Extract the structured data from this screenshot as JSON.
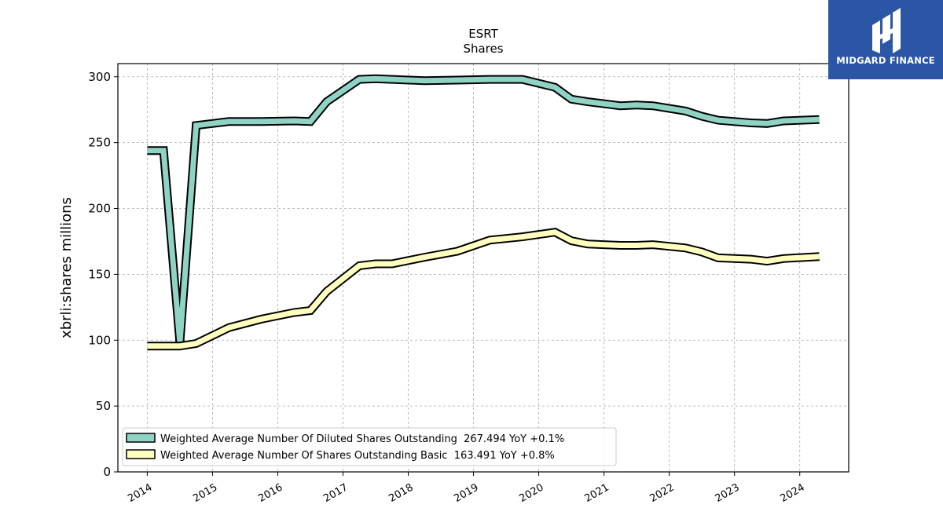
{
  "logo": {
    "text": "MIDGARD FINANCE",
    "icon": "midgard-logo-icon",
    "background": "#2b56a6"
  },
  "chart_data": {
    "type": "line",
    "title": "ESRT",
    "subtitle": "Shares",
    "xlabel": "",
    "ylabel": "xbrli:shares millions",
    "ylim": [
      0,
      310
    ],
    "xlim": [
      2013.55,
      2024.75
    ],
    "yticks": [
      0,
      50,
      100,
      150,
      200,
      250,
      300
    ],
    "xticks": [
      "2014",
      "2015",
      "2016",
      "2017",
      "2018",
      "2019",
      "2020",
      "2021",
      "2022",
      "2023",
      "2024"
    ],
    "grid": true,
    "legend_position": "lower-left",
    "series": [
      {
        "name": "Weighted Average Number Of Diluted Shares Outstanding",
        "legend_label": "Weighted Average Number Of Diluted Shares Outstanding  267.494 YoY +0.1%",
        "color": "#8fd3c4",
        "points": [
          [
            2014.0,
            244.0
          ],
          [
            2014.25,
            244.0
          ],
          [
            2014.5,
            98.0
          ],
          [
            2014.75,
            263.0
          ],
          [
            2015.25,
            266.0
          ],
          [
            2015.75,
            266.0
          ],
          [
            2016.25,
            266.5
          ],
          [
            2016.5,
            266.0
          ],
          [
            2016.75,
            281.0
          ],
          [
            2017.25,
            298.0
          ],
          [
            2017.5,
            298.5
          ],
          [
            2017.75,
            298.0
          ],
          [
            2018.25,
            297.0
          ],
          [
            2018.75,
            297.5
          ],
          [
            2019.25,
            298.0
          ],
          [
            2019.75,
            298.0
          ],
          [
            2020.25,
            292.0
          ],
          [
            2020.5,
            283.0
          ],
          [
            2020.75,
            281.0
          ],
          [
            2021.25,
            278.0
          ],
          [
            2021.5,
            278.5
          ],
          [
            2021.75,
            278.0
          ],
          [
            2022.25,
            274.0
          ],
          [
            2022.5,
            270.0
          ],
          [
            2022.75,
            267.0
          ],
          [
            2023.25,
            265.0
          ],
          [
            2023.5,
            264.5
          ],
          [
            2023.75,
            266.5
          ],
          [
            2024.3,
            267.5
          ]
        ]
      },
      {
        "name": "Weighted Average Number Of Shares Outstanding Basic",
        "legend_label": "Weighted Average Number Of Shares Outstanding Basic  163.491 YoY +0.8%",
        "color": "#ffffbf",
        "points": [
          [
            2014.0,
            95.5
          ],
          [
            2014.25,
            95.5
          ],
          [
            2014.5,
            95.5
          ],
          [
            2014.75,
            97.5
          ],
          [
            2015.25,
            109.5
          ],
          [
            2015.75,
            116.0
          ],
          [
            2016.25,
            121.0
          ],
          [
            2016.5,
            122.5
          ],
          [
            2016.75,
            137.0
          ],
          [
            2017.25,
            156.5
          ],
          [
            2017.5,
            158.0
          ],
          [
            2017.75,
            158.0
          ],
          [
            2018.25,
            163.0
          ],
          [
            2018.75,
            167.5
          ],
          [
            2019.25,
            176.0
          ],
          [
            2019.75,
            178.5
          ],
          [
            2020.25,
            182.0
          ],
          [
            2020.5,
            175.5
          ],
          [
            2020.75,
            173.0
          ],
          [
            2021.25,
            172.0
          ],
          [
            2021.5,
            172.0
          ],
          [
            2021.75,
            172.5
          ],
          [
            2022.25,
            170.0
          ],
          [
            2022.5,
            167.0
          ],
          [
            2022.75,
            162.5
          ],
          [
            2023.25,
            161.5
          ],
          [
            2023.5,
            160.0
          ],
          [
            2023.75,
            162.0
          ],
          [
            2024.3,
            163.5
          ]
        ]
      }
    ]
  }
}
